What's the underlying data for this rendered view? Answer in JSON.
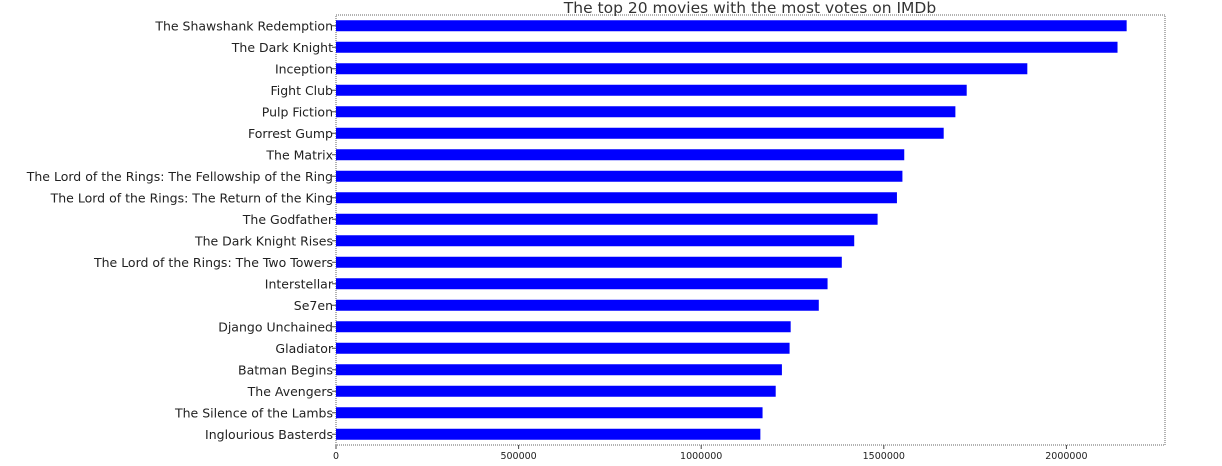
{
  "chart_data": {
    "type": "bar",
    "orientation": "horizontal",
    "title": "The top 20 movies with the most votes on IMDb",
    "xlabel": "",
    "ylabel": "",
    "categories": [
      "The Shawshank Redemption",
      "The Dark Knight",
      "Inception",
      "Fight Club",
      "Pulp Fiction",
      "Forrest Gump",
      "The Matrix",
      "The Lord of the Rings: The Fellowship of the Ring",
      "The Lord of the Rings: The Return of the King",
      "The Godfather",
      "The Dark Knight Rises",
      "The Lord of the Rings: The Two Towers",
      "Interstellar",
      "Se7en",
      "Django Unchained",
      "Gladiator",
      "Batman Begins",
      "The Avengers",
      "The Silence of the Lambs",
      "Inglourious Basterds"
    ],
    "values": [
      2165000,
      2140000,
      1893000,
      1727000,
      1696000,
      1664000,
      1556000,
      1551000,
      1536000,
      1483000,
      1419000,
      1385000,
      1346000,
      1322000,
      1245000,
      1242000,
      1221000,
      1204000,
      1168000,
      1162000
    ],
    "xlim": [
      0,
      2270000
    ],
    "xticks": [
      0,
      500000,
      1000000,
      1500000,
      2000000
    ],
    "xtick_labels": [
      "0",
      "500000",
      "1000000",
      "1500000",
      "2000000"
    ],
    "bar_color": "#0000ff",
    "grid": false,
    "legend": "none"
  }
}
